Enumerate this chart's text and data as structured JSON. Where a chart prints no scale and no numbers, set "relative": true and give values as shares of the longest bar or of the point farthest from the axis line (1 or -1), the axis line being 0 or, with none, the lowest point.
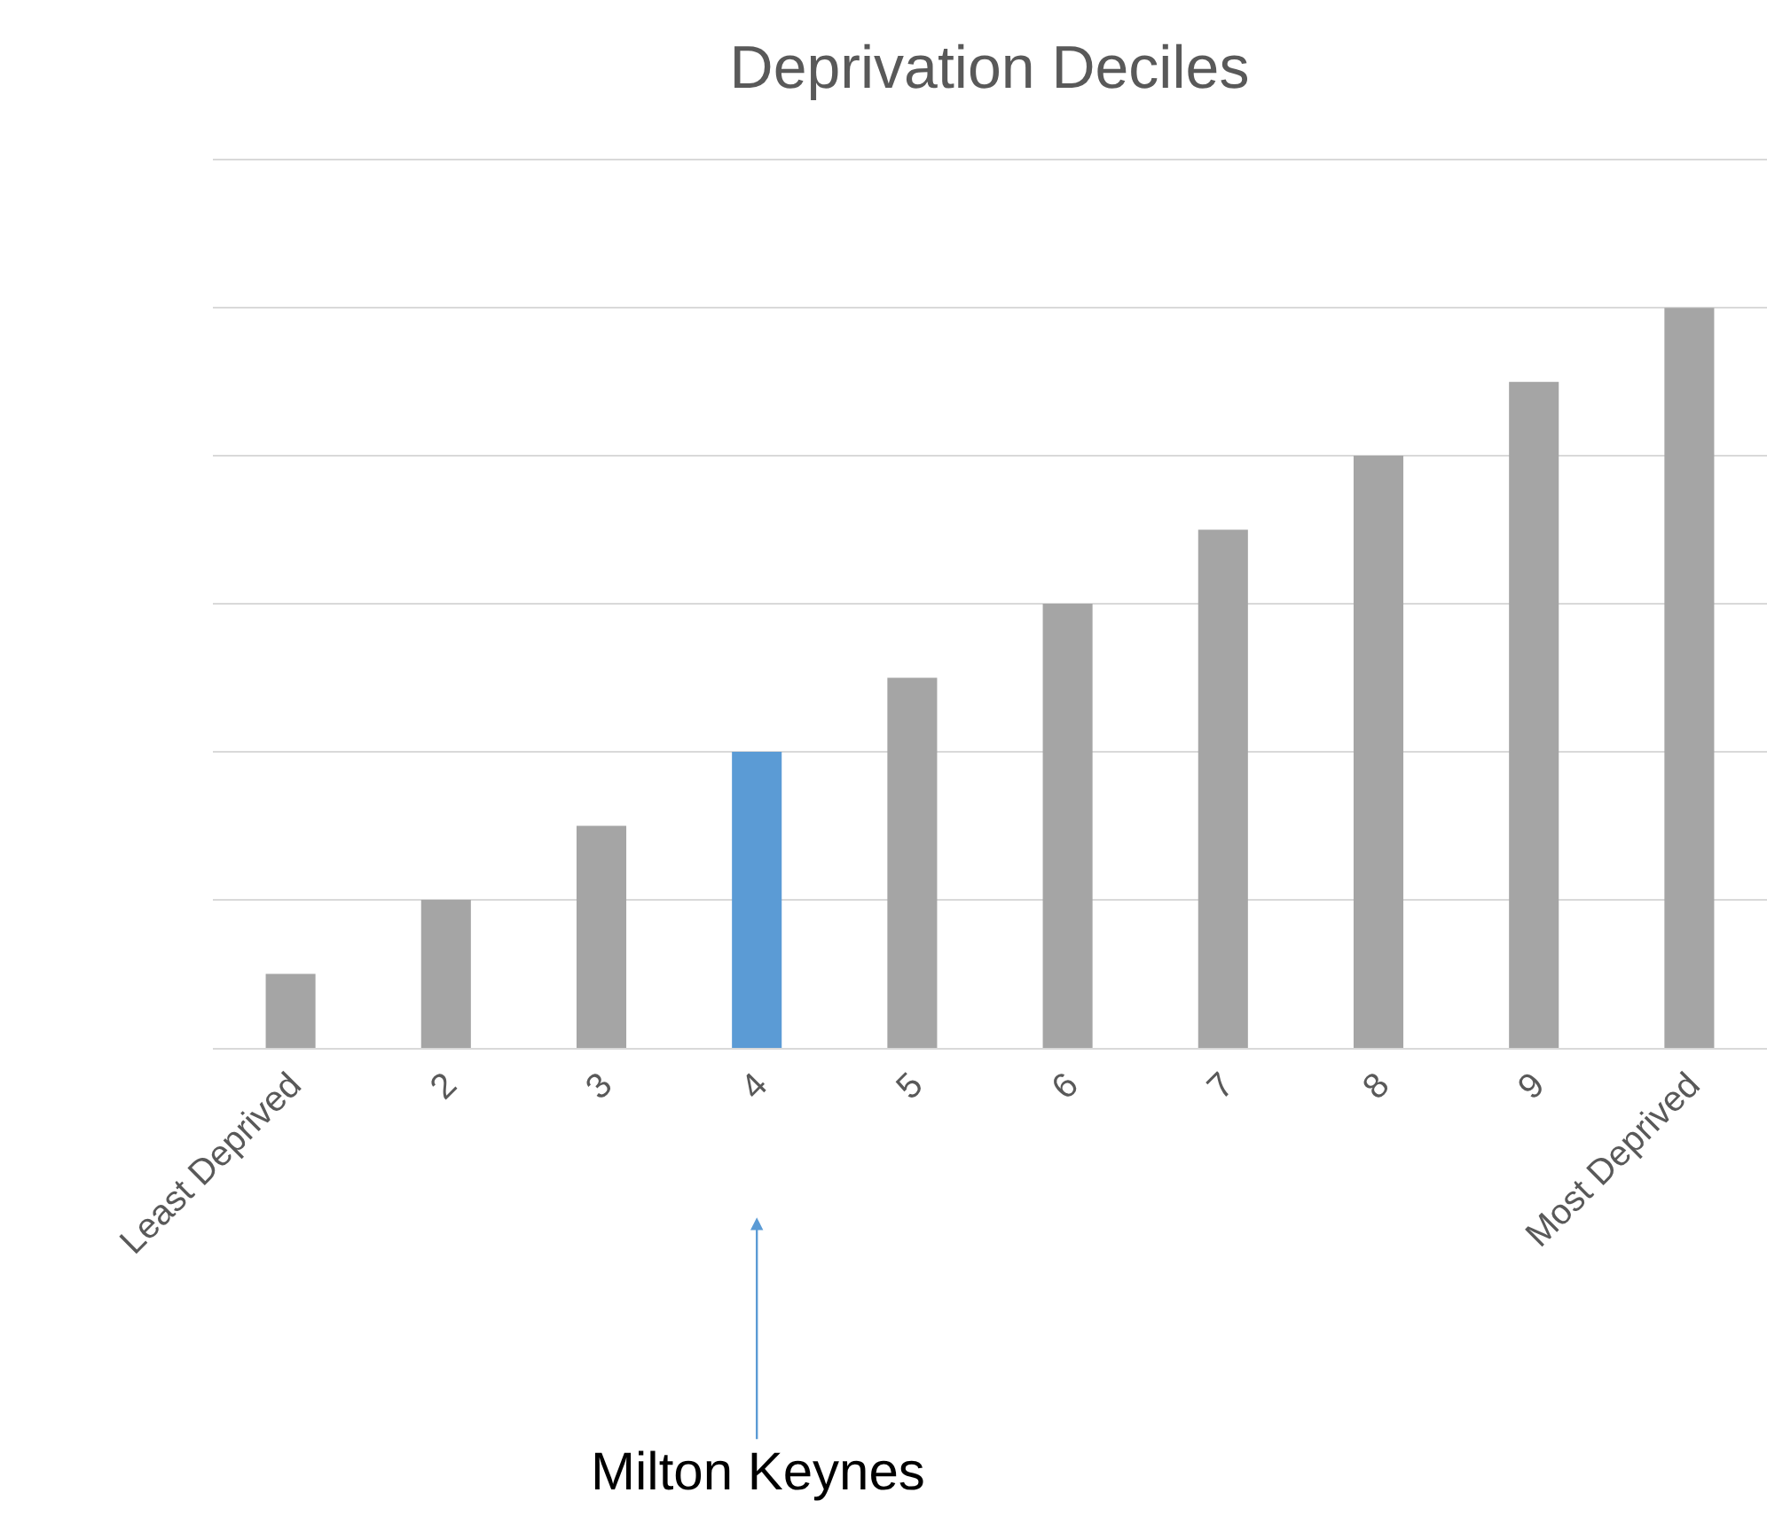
{
  "chart_data": {
    "type": "bar",
    "title": "Deprivation Deciles",
    "categories": [
      "Least Deprived",
      "2",
      "3",
      "4",
      "5",
      "6",
      "7",
      "8",
      "9",
      "Most Deprived"
    ],
    "values": [
      0.1,
      0.2,
      0.3,
      0.4,
      0.5,
      0.6,
      0.7,
      0.8,
      0.9,
      1.0
    ],
    "colors": [
      "#a5a5a5",
      "#a5a5a5",
      "#a5a5a5",
      "#5b9bd5",
      "#a5a5a5",
      "#a5a5a5",
      "#a5a5a5",
      "#a5a5a5",
      "#a5a5a5",
      "#a5a5a5"
    ],
    "relative": true,
    "grid": "y",
    "annotations": [
      "Milton Keynes"
    ]
  }
}
